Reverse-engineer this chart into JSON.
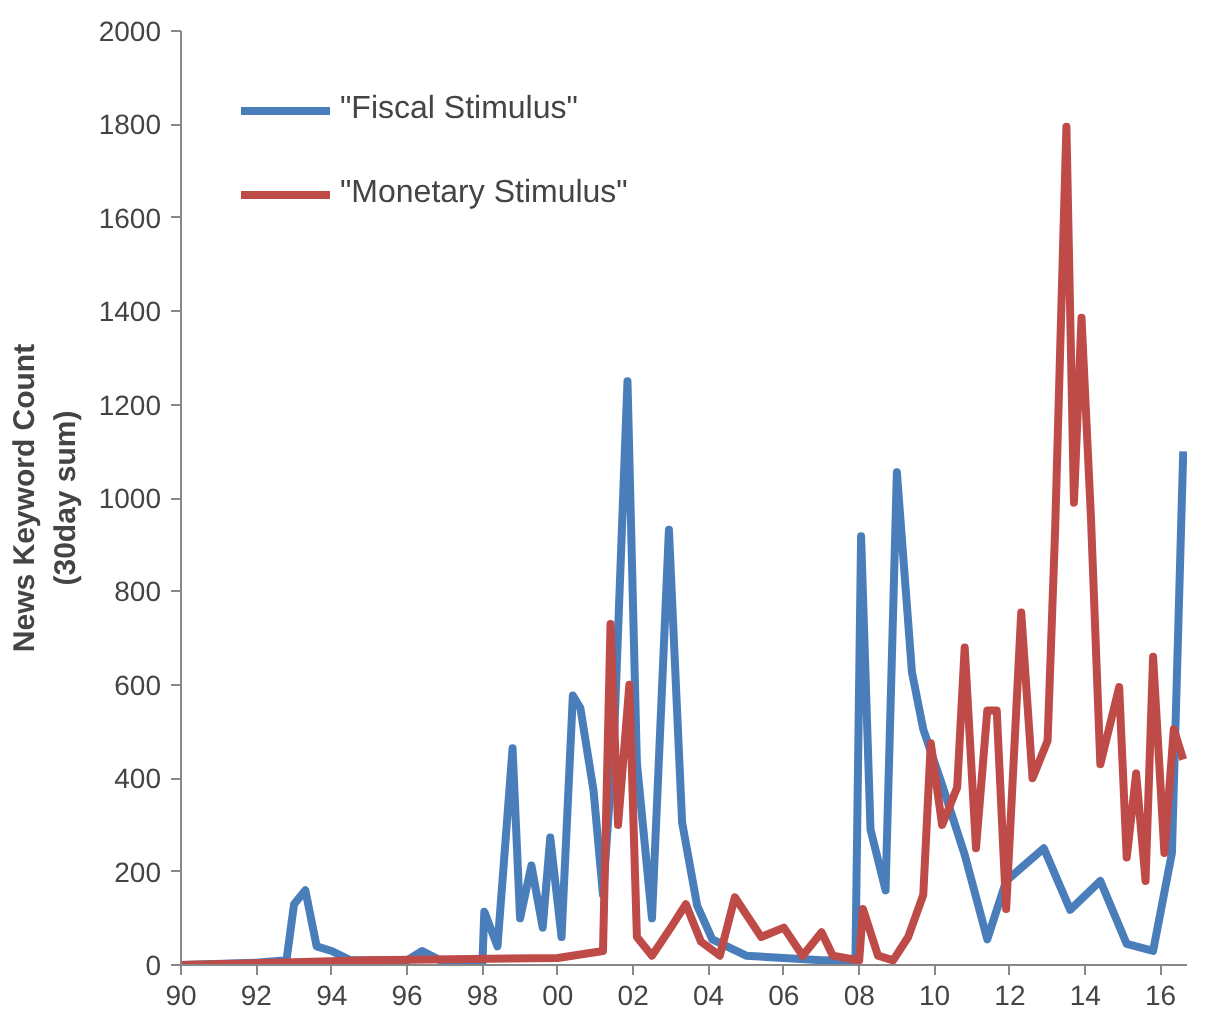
{
  "chart_data": {
    "type": "line",
    "ylabel": "News Keyword Count\n(30day sum)",
    "xlim": [
      1990,
      2016.7
    ],
    "ylim": [
      0,
      2000
    ],
    "xticks": [
      {
        "value": 1990,
        "label": "90"
      },
      {
        "value": 1992,
        "label": "92"
      },
      {
        "value": 1994,
        "label": "94"
      },
      {
        "value": 1996,
        "label": "96"
      },
      {
        "value": 1998,
        "label": "98"
      },
      {
        "value": 2000,
        "label": "00"
      },
      {
        "value": 2002,
        "label": "02"
      },
      {
        "value": 2004,
        "label": "04"
      },
      {
        "value": 2006,
        "label": "06"
      },
      {
        "value": 2008,
        "label": "08"
      },
      {
        "value": 2010,
        "label": "10"
      },
      {
        "value": 2012,
        "label": "12"
      },
      {
        "value": 2014,
        "label": "14"
      },
      {
        "value": 2016,
        "label": "16"
      }
    ],
    "yticks": [
      0,
      200,
      400,
      600,
      800,
      1000,
      1200,
      1400,
      1600,
      1800,
      2000
    ],
    "grid": false,
    "legend": "top left",
    "line_style": "solid",
    "series": [
      {
        "name": "\"Fiscal Stimulus\"",
        "color": "#4a7ebb",
        "x": [
          1990,
          1992,
          1992.8,
          1993,
          1993.3,
          1993.6,
          1994,
          1994.5,
          1996,
          1996.4,
          1997,
          1998,
          1998.05,
          1998.4,
          1998.8,
          1999.0,
          1999.3,
          1999.6,
          1999.8,
          2000.1,
          2000.4,
          2000.6,
          2000.95,
          2001.2,
          2001.5,
          2001.85,
          2002.1,
          2002.5,
          2002.95,
          2003.3,
          2003.7,
          2004.1,
          2005,
          2006,
          2007,
          2007.9,
          2008.05,
          2008.3,
          2008.7,
          2009.0,
          2009.4,
          2009.7,
          2010.2,
          2010.8,
          2011.4,
          2011.9,
          2012.9,
          2013.6,
          2014.4,
          2015.1,
          2015.8,
          2016.3,
          2016.6
        ],
        "values": [
          0,
          5,
          10,
          130,
          160,
          40,
          30,
          10,
          10,
          30,
          5,
          5,
          114,
          40,
          464,
          100,
          213,
          80,
          273,
          60,
          577,
          550,
          373,
          150,
          500,
          1250,
          432,
          100,
          932,
          305,
          127,
          55,
          20,
          15,
          10,
          10,
          918,
          290,
          160,
          1055,
          627,
          505,
          386,
          236,
          55,
          180,
          250,
          118,
          180,
          45,
          30,
          240,
          1100
        ]
      },
      {
        "name": "\"Monetary Stimulus\"",
        "color": "#be4b48",
        "x": [
          1990,
          1995,
          2000,
          2001.2,
          2001.4,
          2001.6,
          2001.9,
          2002.1,
          2002.5,
          2003,
          2003.4,
          2003.8,
          2004.3,
          2004.7,
          2005.4,
          2006,
          2006.5,
          2007,
          2007.3,
          2008,
          2008.1,
          2008.5,
          2008.9,
          2009.3,
          2009.7,
          2009.9,
          2010.2,
          2010.6,
          2010.8,
          2011.1,
          2011.4,
          2011.65,
          2011.9,
          2012.3,
          2012.6,
          2013,
          2013.2,
          2013.5,
          2013.7,
          2013.9,
          2014.15,
          2014.4,
          2014.9,
          2015.1,
          2015.35,
          2015.6,
          2015.8,
          2016.1,
          2016.35,
          2016.6
        ],
        "values": [
          0,
          10,
          15,
          30,
          730,
          300,
          600,
          60,
          20,
          80,
          130,
          50,
          20,
          145,
          60,
          80,
          20,
          70,
          20,
          10,
          120,
          20,
          10,
          60,
          150,
          475,
          300,
          380,
          680,
          250,
          545,
          545,
          120,
          755,
          400,
          480,
          932,
          1795,
          990,
          1386,
          960,
          430,
          595,
          230,
          410,
          180,
          660,
          240,
          505,
          440
        ]
      }
    ]
  }
}
